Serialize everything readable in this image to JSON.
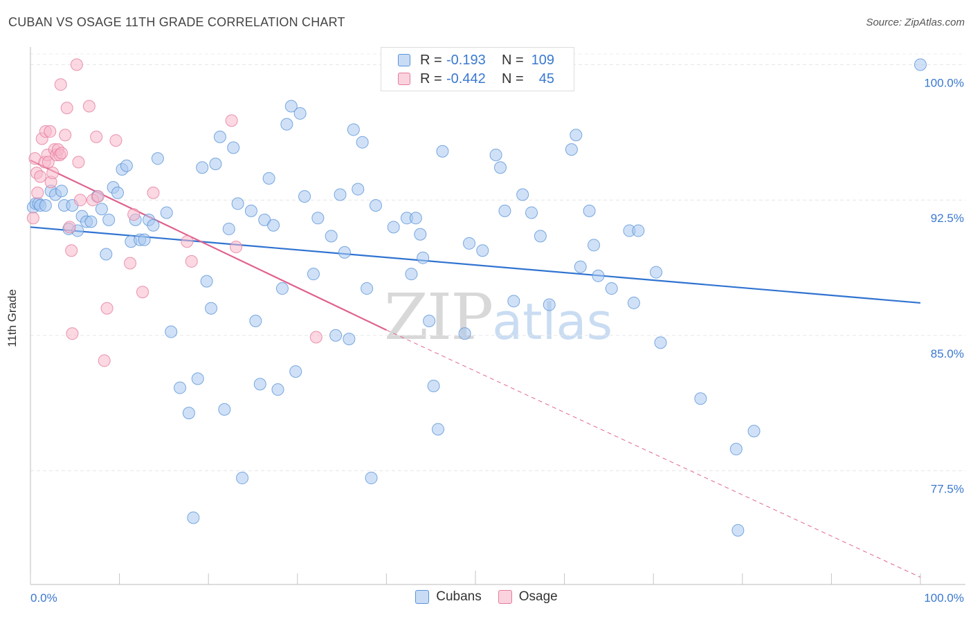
{
  "header": {
    "title": "CUBAN VS OSAGE 11TH GRADE CORRELATION CHART",
    "source": "Source: ZipAtlas.com"
  },
  "watermark": {
    "zip": "ZIP",
    "atlas": "atlas"
  },
  "legend": {
    "rows": [
      {
        "r_label": "R =",
        "r_value": "-0.193",
        "n_label": "N =",
        "n_value": "109",
        "color": "#a9c8f0",
        "border": "#5a93d8"
      },
      {
        "r_label": "R =",
        "r_value": "-0.442",
        "n_label": "N =",
        "n_value": "45",
        "color": "#f7b8ca",
        "border": "#e57a9c"
      }
    ]
  },
  "chart_data": {
    "type": "scatter",
    "title": "CUBAN VS OSAGE 11TH GRADE CORRELATION CHART",
    "xlabel": "",
    "ylabel": "11th Grade",
    "xlim": [
      0,
      100
    ],
    "ylim": [
      71.2,
      100.9
    ],
    "x_tick_labels": [
      "0.0%",
      "100.0%"
    ],
    "y_ticks": [
      77.5,
      85.0,
      92.5,
      100.0
    ],
    "y_tick_labels": [
      "77.5%",
      "85.0%",
      "92.5%",
      "100.0%"
    ],
    "grid": true,
    "legend_position": "top-center",
    "series": [
      {
        "name": "Cubans",
        "color": "#a9c8f0",
        "edge": "#5a93d8",
        "trend": {
          "x0": 0,
          "y0": 91.0,
          "x1": 100,
          "y1": 86.8,
          "color": "#2f73d1"
        },
        "points": [
          [
            0.3,
            92.1
          ],
          [
            0.6,
            92.3
          ],
          [
            0.9,
            92.3
          ],
          [
            1.1,
            92.2
          ],
          [
            1.7,
            92.2
          ],
          [
            2.3,
            93.0
          ],
          [
            2.8,
            92.8
          ],
          [
            3.5,
            93.0
          ],
          [
            3.8,
            92.2
          ],
          [
            4.3,
            90.9
          ],
          [
            4.7,
            92.2
          ],
          [
            5.3,
            90.8
          ],
          [
            5.8,
            91.6
          ],
          [
            6.3,
            91.3
          ],
          [
            6.8,
            91.3
          ],
          [
            7.5,
            92.7
          ],
          [
            8.0,
            92.0
          ],
          [
            8.5,
            89.5
          ],
          [
            8.8,
            91.4
          ],
          [
            9.3,
            93.2
          ],
          [
            9.8,
            92.9
          ],
          [
            10.3,
            94.2
          ],
          [
            10.8,
            94.4
          ],
          [
            11.3,
            90.2
          ],
          [
            11.8,
            91.4
          ],
          [
            12.3,
            90.3
          ],
          [
            12.8,
            90.3
          ],
          [
            13.3,
            91.4
          ],
          [
            13.8,
            91.1
          ],
          [
            14.3,
            94.8
          ],
          [
            15.3,
            91.8
          ],
          [
            15.8,
            85.2
          ],
          [
            16.8,
            82.1
          ],
          [
            17.8,
            80.7
          ],
          [
            18.3,
            74.9
          ],
          [
            18.8,
            82.6
          ],
          [
            19.3,
            94.3
          ],
          [
            19.8,
            88.0
          ],
          [
            20.3,
            86.5
          ],
          [
            20.8,
            94.5
          ],
          [
            21.3,
            96.0
          ],
          [
            21.8,
            80.9
          ],
          [
            22.3,
            90.9
          ],
          [
            22.8,
            95.4
          ],
          [
            23.3,
            92.3
          ],
          [
            23.8,
            77.1
          ],
          [
            24.8,
            91.9
          ],
          [
            25.3,
            85.8
          ],
          [
            25.8,
            82.3
          ],
          [
            26.3,
            91.4
          ],
          [
            26.8,
            93.7
          ],
          [
            27.3,
            91.1
          ],
          [
            27.8,
            82.0
          ],
          [
            28.3,
            87.6
          ],
          [
            28.8,
            96.7
          ],
          [
            29.3,
            97.7
          ],
          [
            29.8,
            83.0
          ],
          [
            30.3,
            97.3
          ],
          [
            30.8,
            92.7
          ],
          [
            31.8,
            88.4
          ],
          [
            32.3,
            91.5
          ],
          [
            33.8,
            90.5
          ],
          [
            34.3,
            85.0
          ],
          [
            34.8,
            92.8
          ],
          [
            35.3,
            89.6
          ],
          [
            35.8,
            84.8
          ],
          [
            36.3,
            96.4
          ],
          [
            36.8,
            93.1
          ],
          [
            37.3,
            95.7
          ],
          [
            37.8,
            87.6
          ],
          [
            38.3,
            77.1
          ],
          [
            38.8,
            92.2
          ],
          [
            40.8,
            91.0
          ],
          [
            42.3,
            91.5
          ],
          [
            42.8,
            88.4
          ],
          [
            43.3,
            91.5
          ],
          [
            43.8,
            90.6
          ],
          [
            44.1,
            89.3
          ],
          [
            44.8,
            85.8
          ],
          [
            45.3,
            82.2
          ],
          [
            45.8,
            79.8
          ],
          [
            46.3,
            95.2
          ],
          [
            48.8,
            85.1
          ],
          [
            49.3,
            90.1
          ],
          [
            50.8,
            89.7
          ],
          [
            52.3,
            95.0
          ],
          [
            52.8,
            94.3
          ],
          [
            53.3,
            91.9
          ],
          [
            54.3,
            86.9
          ],
          [
            55.3,
            92.8
          ],
          [
            56.3,
            91.8
          ],
          [
            57.3,
            90.5
          ],
          [
            58.3,
            86.7
          ],
          [
            60.8,
            95.3
          ],
          [
            61.3,
            96.1
          ],
          [
            61.8,
            88.8
          ],
          [
            62.8,
            91.9
          ],
          [
            63.3,
            90.0
          ],
          [
            63.8,
            88.3
          ],
          [
            65.3,
            87.6
          ],
          [
            67.3,
            90.8
          ],
          [
            67.8,
            86.8
          ],
          [
            68.3,
            90.8
          ],
          [
            70.3,
            88.5
          ],
          [
            70.8,
            84.6
          ],
          [
            75.3,
            81.5
          ],
          [
            79.3,
            78.7
          ],
          [
            79.5,
            74.2
          ],
          [
            81.3,
            79.7
          ],
          [
            100,
            100.0
          ]
        ]
      },
      {
        "name": "Osage",
        "color": "#f7b8ca",
        "edge": "#e57a9c",
        "trend": {
          "x0": 0,
          "y0": 94.7,
          "x1": 40,
          "y1": 85.3,
          "dash_x1": 100,
          "dash_y1": 71.6,
          "color": "#e0628e"
        },
        "points": [
          [
            0.3,
            91.5
          ],
          [
            0.5,
            94.8
          ],
          [
            0.7,
            94.0
          ],
          [
            0.8,
            92.9
          ],
          [
            1.1,
            93.8
          ],
          [
            1.3,
            95.9
          ],
          [
            1.6,
            94.6
          ],
          [
            1.7,
            96.3
          ],
          [
            1.9,
            95.0
          ],
          [
            2.0,
            94.6
          ],
          [
            2.2,
            96.3
          ],
          [
            2.3,
            93.5
          ],
          [
            2.5,
            94.0
          ],
          [
            2.7,
            95.3
          ],
          [
            2.9,
            95.0
          ],
          [
            3.1,
            95.3
          ],
          [
            3.3,
            95.0
          ],
          [
            3.5,
            95.1
          ],
          [
            3.4,
            98.9
          ],
          [
            3.9,
            96.1
          ],
          [
            4.1,
            97.6
          ],
          [
            4.4,
            91.0
          ],
          [
            4.6,
            89.7
          ],
          [
            4.7,
            85.1
          ],
          [
            5.2,
            100.0
          ],
          [
            5.4,
            94.6
          ],
          [
            5.6,
            92.5
          ],
          [
            6.6,
            97.7
          ],
          [
            7.0,
            92.5
          ],
          [
            7.4,
            96.0
          ],
          [
            7.6,
            92.7
          ],
          [
            8.3,
            83.6
          ],
          [
            8.6,
            86.5
          ],
          [
            9.6,
            95.8
          ],
          [
            11.2,
            89.0
          ],
          [
            11.6,
            91.7
          ],
          [
            12.6,
            87.4
          ],
          [
            13.8,
            92.9
          ],
          [
            17.6,
            90.2
          ],
          [
            18.1,
            89.1
          ],
          [
            22.6,
            96.9
          ],
          [
            23.1,
            89.9
          ],
          [
            32.1,
            84.9
          ]
        ]
      }
    ]
  }
}
